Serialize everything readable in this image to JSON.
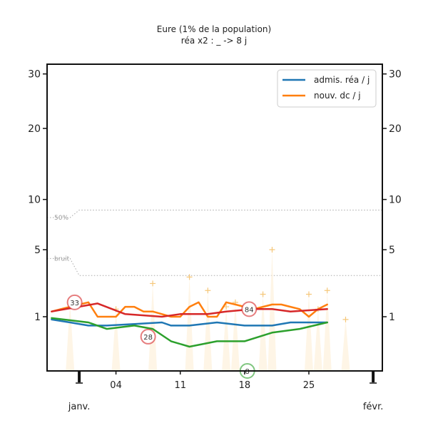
{
  "chart_data": {
    "type": "line",
    "title": "Eure (1% de la population)",
    "subtitle": "réa x2 : _ -> 8 j",
    "y_ticks": [
      1,
      5,
      10,
      20,
      30
    ],
    "ylim": [
      0,
      32
    ],
    "x_ticks": [
      "04",
      "11",
      "18",
      "25"
    ],
    "x_tick_days": [
      4,
      11,
      18,
      25
    ],
    "month_labels": [
      {
        "label": "janv.",
        "day": 0
      },
      {
        "label": "févr.",
        "day": 32
      }
    ],
    "xlim": [
      -3.5,
      33
    ],
    "legend": {
      "placement": "top-right",
      "entries": [
        {
          "label": "admis. réa / j",
          "color": "#1f77b4"
        },
        {
          "label": "nouv. dc / j",
          "color": "#ff7f0e"
        }
      ]
    },
    "reference_lines": [
      {
        "label": "50%",
        "points": [
          [
            -3.5,
            8
          ],
          [
            -1,
            8
          ],
          [
            0,
            8.8
          ],
          [
            33,
            8.8
          ]
        ]
      },
      {
        "label": "bruit",
        "points": [
          [
            -3.5,
            4.3
          ],
          [
            -1,
            4.3
          ],
          [
            0,
            3.1
          ],
          [
            33,
            3.1
          ]
        ]
      }
    ],
    "series": [
      {
        "name": "admis. réa / j",
        "color": "#1f77b4",
        "x": [
          -3,
          -1,
          1,
          3,
          6,
          9,
          10,
          12,
          15,
          18,
          21,
          23,
          25,
          27
        ],
        "y": [
          0.9,
          0.8,
          0.7,
          0.7,
          0.75,
          0.8,
          0.7,
          0.7,
          0.8,
          0.7,
          0.7,
          0.8,
          0.8,
          0.8
        ]
      },
      {
        "name": "nouv. dc / j",
        "color": "#ff7f0e",
        "x": [
          -3,
          -2,
          -1,
          0,
          1,
          2,
          3,
          4,
          5,
          6,
          7,
          8,
          9,
          10,
          11,
          12,
          13,
          14,
          15,
          16,
          17,
          18,
          19,
          20,
          21,
          22,
          23,
          24,
          25,
          26,
          27
        ],
        "y": [
          1.2,
          1.3,
          1.4,
          1.5,
          1.6,
          1.0,
          1.0,
          1.0,
          1.4,
          1.4,
          1.2,
          1.2,
          1.1,
          1.0,
          1.0,
          1.4,
          1.6,
          1.0,
          1.0,
          1.6,
          1.5,
          1.4,
          1.3,
          1.4,
          1.5,
          1.5,
          1.4,
          1.3,
          1.0,
          1.3,
          1.5
        ]
      },
      {
        "name": "",
        "color": "#d62728",
        "x": [
          -3,
          2,
          5,
          9,
          11,
          14,
          16,
          19,
          21,
          23,
          27
        ],
        "y": [
          1.2,
          1.55,
          1.1,
          1.0,
          1.1,
          1.1,
          1.2,
          1.3,
          1.3,
          1.2,
          1.3
        ]
      },
      {
        "name": "",
        "color": "#2ca02c",
        "x": [
          -3,
          1,
          3,
          6,
          8,
          10,
          12,
          15,
          18,
          21,
          24,
          27
        ],
        "y": [
          0.95,
          0.8,
          0.6,
          0.7,
          0.6,
          0.3,
          0.2,
          0.3,
          0.3,
          0.5,
          0.6,
          0.8
        ]
      }
    ],
    "markers": [
      {
        "x": -1,
        "y": 1.6
      },
      {
        "x": 4,
        "y": 1.3
      },
      {
        "x": 8,
        "y": 2.6
      },
      {
        "x": 12,
        "y": 3.0
      },
      {
        "x": 14,
        "y": 2.2
      },
      {
        "x": 16,
        "y": 1.4
      },
      {
        "x": 17,
        "y": 1.6
      },
      {
        "x": 20,
        "y": 2.0
      },
      {
        "x": 21,
        "y": 5.0
      },
      {
        "x": 25,
        "y": 2.0
      },
      {
        "x": 26,
        "y": 1.3
      },
      {
        "x": 27,
        "y": 2.2
      },
      {
        "x": 29,
        "y": 0.9
      }
    ],
    "marker_color": "#f5c77a",
    "annotations": [
      {
        "text": "33",
        "x": -0.5,
        "y": 1.6,
        "color": "#d62728"
      },
      {
        "text": "28",
        "x": 7.5,
        "y": 0.4,
        "color": "#d62728"
      },
      {
        "text": "84",
        "x": 18.5,
        "y": 1.3,
        "color": "#d62728"
      },
      {
        "text": "8",
        "x": 18.3,
        "y": 0.0,
        "color": "#2ca02c"
      }
    ]
  }
}
